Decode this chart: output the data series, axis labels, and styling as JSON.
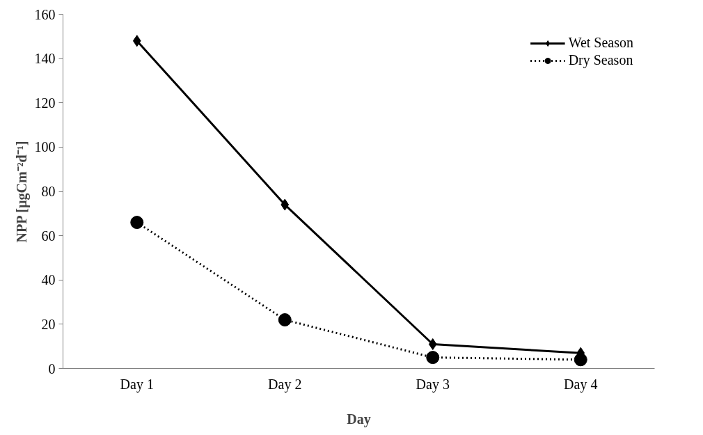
{
  "chart_data": {
    "type": "line",
    "xlabel": "Day",
    "ylabel": "NPP [µgCm⁻²d⁻¹]",
    "categories": [
      "Day 1",
      "Day 2",
      "Day 3",
      "Day 4"
    ],
    "series": [
      {
        "name": "Wet Season",
        "color": "#000000",
        "values": [
          148,
          74,
          11,
          7
        ],
        "marker": "diamond",
        "line_style": "solid"
      },
      {
        "name": "Dry Season",
        "color": "#000000",
        "values": [
          66,
          22,
          5,
          4
        ],
        "marker": "circle",
        "line_style": "dotted"
      }
    ],
    "ylim": [
      0,
      160
    ],
    "yticks": [
      0,
      20,
      40,
      60,
      80,
      100,
      120,
      140,
      160
    ],
    "grid": false,
    "legend": "top right"
  }
}
